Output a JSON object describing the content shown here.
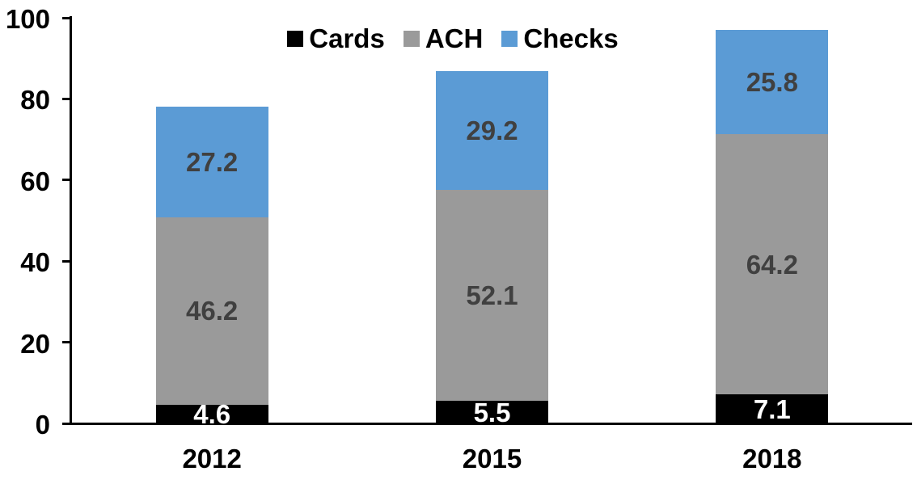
{
  "chart_data": {
    "type": "bar",
    "stacked": true,
    "title": "",
    "xlabel": "",
    "ylabel": "",
    "categories": [
      "2012",
      "2015",
      "2018"
    ],
    "series": [
      {
        "name": "Cards",
        "color": "#000000",
        "label_color": "#ffffff",
        "values": [
          4.6,
          5.5,
          7.1
        ]
      },
      {
        "name": "ACH",
        "color": "#9a9a9a",
        "label_color": "#404040",
        "values": [
          46.2,
          52.1,
          64.2
        ]
      },
      {
        "name": "Checks",
        "color": "#5b9bd5",
        "label_color": "#404040",
        "values": [
          27.2,
          29.2,
          25.8
        ]
      }
    ],
    "yticks": [
      0,
      20,
      40,
      60,
      80,
      100
    ],
    "ylim": [
      0,
      100
    ],
    "legend_position": "top",
    "legend_labels": [
      "Cards",
      "ACH",
      "Checks"
    ],
    "grid": false,
    "axis_color": "#000000",
    "background_color": "#ffffff"
  }
}
